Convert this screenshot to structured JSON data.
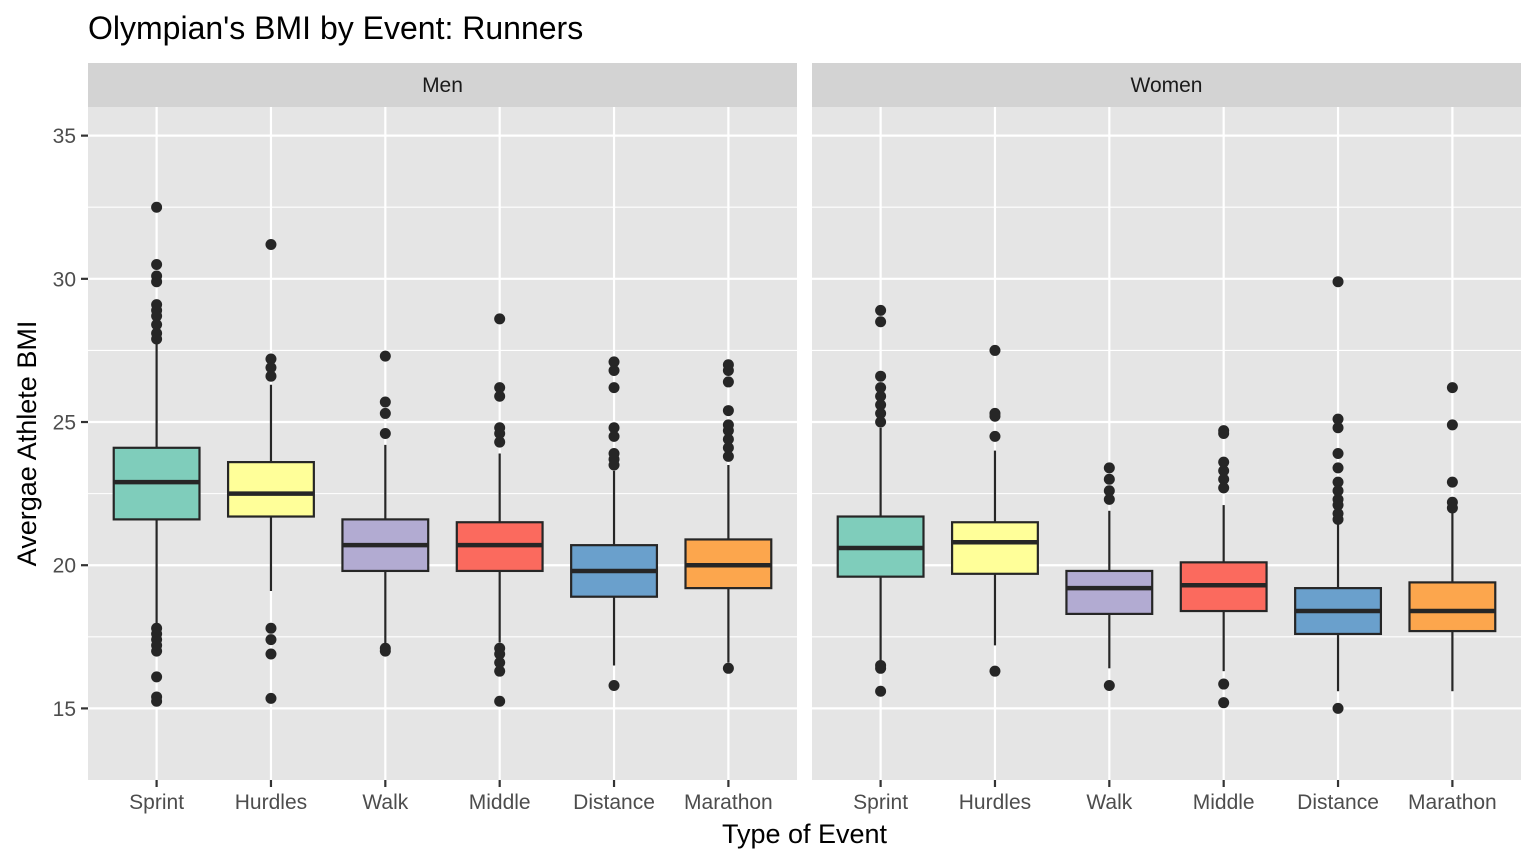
{
  "chart_data": {
    "type": "boxplot",
    "title": "Olympian's BMI by Event: Runners",
    "xlabel": "Type of Event",
    "ylabel": "Avergae Athlete BMI",
    "ylim": [
      12.5,
      36
    ],
    "yticks": [
      15,
      20,
      25,
      30,
      35
    ],
    "grid": true,
    "categories": [
      "Sprint",
      "Hurdles",
      "Walk",
      "Middle",
      "Distance",
      "Marathon"
    ],
    "colors": {
      "Sprint": "#7fcdbb",
      "Hurdles": "#ffff99",
      "Walk": "#b2abd2",
      "Middle": "#fb6a5e",
      "Distance": "#6aa0cc",
      "Marathon": "#fca64d"
    },
    "panel_background": "#e5e5e5",
    "strip_background": "#d3d3d3",
    "panels": [
      {
        "label": "Men",
        "boxes": [
          {
            "category": "Sprint",
            "q1": 21.6,
            "median": 22.9,
            "q3": 24.1,
            "whisker_low": 17.9,
            "whisker_high": 27.8,
            "outliers": [
              32.5,
              30.5,
              30.1,
              29.9,
              29.1,
              28.9,
              28.7,
              28.4,
              28.1,
              27.9,
              17.8,
              17.6,
              17.4,
              17.2,
              17.0,
              16.1,
              15.4,
              15.25
            ]
          },
          {
            "category": "Hurdles",
            "q1": 21.7,
            "median": 22.5,
            "q3": 23.6,
            "whisker_low": 19.1,
            "whisker_high": 26.3,
            "outliers": [
              31.2,
              27.2,
              26.9,
              26.6,
              17.8,
              17.4,
              16.9,
              15.35
            ]
          },
          {
            "category": "Walk",
            "q1": 19.8,
            "median": 20.7,
            "q3": 21.6,
            "whisker_low": 17.2,
            "whisker_high": 24.2,
            "outliers": [
              27.3,
              25.7,
              25.3,
              24.6,
              17.1,
              17.0
            ]
          },
          {
            "category": "Middle",
            "q1": 19.8,
            "median": 20.7,
            "q3": 21.5,
            "whisker_low": 17.3,
            "whisker_high": 23.9,
            "outliers": [
              28.6,
              26.2,
              25.9,
              24.8,
              24.6,
              24.3,
              17.1,
              16.9,
              16.6,
              16.3,
              15.25
            ]
          },
          {
            "category": "Distance",
            "q1": 18.9,
            "median": 19.8,
            "q3": 20.7,
            "whisker_low": 16.5,
            "whisker_high": 23.3,
            "outliers": [
              27.1,
              26.8,
              26.2,
              24.8,
              24.5,
              23.9,
              23.7,
              23.5,
              15.8
            ]
          },
          {
            "category": "Marathon",
            "q1": 19.2,
            "median": 20.0,
            "q3": 20.9,
            "whisker_low": 16.6,
            "whisker_high": 23.5,
            "outliers": [
              27.0,
              26.8,
              26.4,
              25.4,
              24.9,
              24.7,
              24.4,
              24.1,
              23.8,
              16.4
            ]
          }
        ]
      },
      {
        "label": "Women",
        "boxes": [
          {
            "category": "Sprint",
            "q1": 19.6,
            "median": 20.6,
            "q3": 21.7,
            "whisker_low": 16.6,
            "whisker_high": 24.8,
            "outliers": [
              28.9,
              28.5,
              26.6,
              26.2,
              25.9,
              25.6,
              25.3,
              25.0,
              16.5,
              16.4,
              15.6
            ]
          },
          {
            "category": "Hurdles",
            "q1": 19.7,
            "median": 20.8,
            "q3": 21.5,
            "whisker_low": 17.2,
            "whisker_high": 24.0,
            "outliers": [
              27.5,
              25.3,
              25.2,
              24.5,
              16.3
            ]
          },
          {
            "category": "Walk",
            "q1": 18.3,
            "median": 19.2,
            "q3": 19.8,
            "whisker_low": 16.4,
            "whisker_high": 21.9,
            "outliers": [
              23.4,
              23.0,
              22.6,
              22.3,
              15.8
            ]
          },
          {
            "category": "Middle",
            "q1": 18.4,
            "median": 19.3,
            "q3": 20.1,
            "whisker_low": 16.3,
            "whisker_high": 22.1,
            "outliers": [
              24.7,
              24.6,
              23.6,
              23.3,
              23.0,
              22.7,
              15.85,
              15.2
            ]
          },
          {
            "category": "Distance",
            "q1": 17.6,
            "median": 18.4,
            "q3": 19.2,
            "whisker_low": 15.6,
            "whisker_high": 21.5,
            "outliers": [
              29.9,
              25.1,
              24.8,
              23.9,
              23.4,
              22.9,
              22.6,
              22.3,
              22.1,
              21.8,
              21.6,
              15.0
            ]
          },
          {
            "category": "Marathon",
            "q1": 17.7,
            "median": 18.4,
            "q3": 19.4,
            "whisker_low": 15.6,
            "whisker_high": 21.9,
            "outliers": [
              26.2,
              24.9,
              22.9,
              22.2,
              22.0
            ]
          }
        ]
      }
    ]
  }
}
